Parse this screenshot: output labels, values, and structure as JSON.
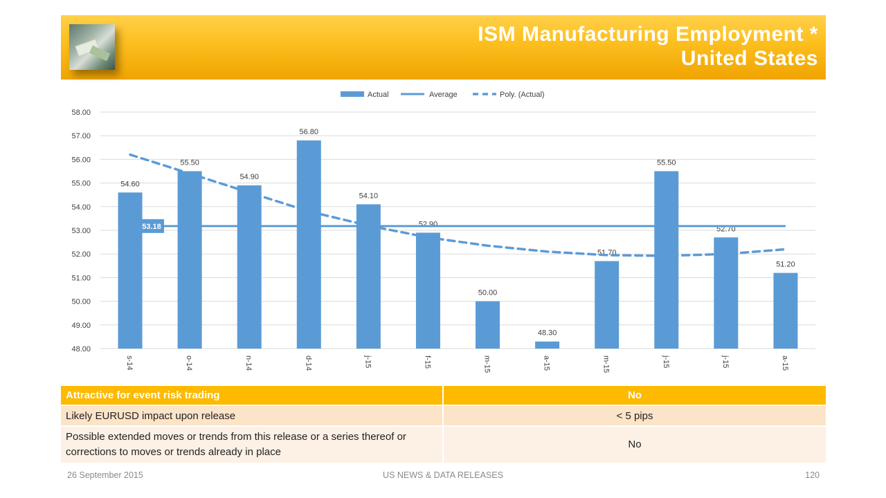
{
  "header": {
    "title_line1": "ISM Manufacturing Employment *",
    "title_line2": "United States",
    "thumbnail_icon": "money-image-icon"
  },
  "colors": {
    "bar": "#5b9bd5",
    "average_line": "#5b9bd5",
    "trend_line": "#5b9bd5",
    "header_gold": "#fdc021",
    "table_header": "#fdba00"
  },
  "chart_data": {
    "type": "bar",
    "title": "",
    "xlabel": "",
    "ylabel": "",
    "categories": [
      "s-14",
      "o-14",
      "n-14",
      "d-14",
      "j-15",
      "f-15",
      "m-15",
      "a-15",
      "m-15",
      "j-15",
      "j-15",
      "a-15"
    ],
    "series": [
      {
        "name": "Actual",
        "type": "bar",
        "values": [
          54.6,
          55.5,
          54.9,
          56.8,
          54.1,
          52.9,
          50.0,
          48.3,
          51.7,
          55.5,
          52.7,
          51.2
        ]
      },
      {
        "name": "Average",
        "type": "line",
        "value": 53.18,
        "label": "53.18"
      },
      {
        "name": "Poly. (Actual)",
        "type": "line-dashed",
        "values": [
          56.2,
          55.4,
          54.6,
          53.8,
          53.2,
          52.7,
          52.35,
          52.1,
          51.95,
          51.92,
          52.0,
          52.2
        ]
      }
    ],
    "data_labels": [
      "54.60",
      "55.50",
      "54.90",
      "56.80",
      "54.10",
      "52.90",
      "50.00",
      "48.30",
      "51.70",
      "55.50",
      "52.70",
      "51.20"
    ],
    "ylim": [
      48,
      58
    ],
    "yticks": [
      "48.00",
      "49.00",
      "50.00",
      "51.00",
      "52.00",
      "53.00",
      "54.00",
      "55.00",
      "56.00",
      "57.00",
      "58.00"
    ],
    "grid": true,
    "legend": {
      "position": "top",
      "entries": [
        "Actual",
        "Average",
        "Poly. (Actual)"
      ]
    }
  },
  "table": {
    "rows": [
      {
        "label": "Attractive for event risk trading",
        "value": "No"
      },
      {
        "label": "Likely EURUSD impact upon release",
        "value": "< 5 pips"
      },
      {
        "label": "Possible extended moves or trends from this release or a series thereof or corrections to moves or trends already in place",
        "value": "No"
      }
    ]
  },
  "footer": {
    "date": "26 September  2015",
    "section": "US NEWS & DATA RELEASES",
    "page": "120"
  }
}
